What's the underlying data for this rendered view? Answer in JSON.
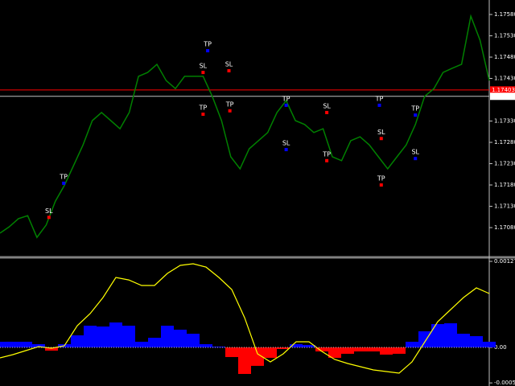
{
  "chart_data": [
    {
      "type": "line",
      "color": "#008000",
      "values": [
        1.17067,
        1.17082,
        1.17101,
        1.17108,
        1.17057,
        1.17086,
        1.17142,
        1.1718,
        1.17227,
        1.17274,
        1.17331,
        1.1735,
        1.17331,
        1.17312,
        1.1735,
        1.17435,
        1.17444,
        1.17463,
        1.17425,
        1.17406,
        1.17435,
        1.17435,
        1.17435,
        1.17388,
        1.17331,
        1.17246,
        1.17218,
        1.17265,
        1.17284,
        1.17303,
        1.1735,
        1.17378,
        1.17331,
        1.17322,
        1.17303,
        1.17312,
        1.17246,
        1.17237,
        1.17284,
        1.17293,
        1.17274,
        1.17246,
        1.17218,
        1.17246,
        1.17274,
        1.17322,
        1.17388,
        1.17406,
        1.17444,
        1.17454,
        1.17463,
        1.17576,
        1.1752,
        1.17425
      ],
      "ylim": [
        1.17014,
        1.17614
      ],
      "yticks": [
        {
          "value": 1.1758,
          "label": "1.17580"
        },
        {
          "value": 1.1753,
          "label": "1.17530"
        },
        {
          "value": 1.1748,
          "label": "1.17480"
        },
        {
          "value": 1.1743,
          "label": "1.17430"
        },
        {
          "value": 1.1733,
          "label": "1.17330"
        },
        {
          "value": 1.1728,
          "label": "1.17280"
        },
        {
          "value": 1.1723,
          "label": "1.17230"
        },
        {
          "value": 1.1718,
          "label": "1.17180"
        },
        {
          "value": 1.1713,
          "label": "1.17130"
        },
        {
          "value": 1.1708,
          "label": "1.17080"
        }
      ],
      "levels": [
        {
          "value": 1.17403,
          "label": "1.17403",
          "color": "#ff0000"
        },
        {
          "value": 1.17388,
          "label": "1.17388",
          "color": "#c0c0c0"
        }
      ],
      "signals": [
        {
          "text": "TP",
          "x": 6.9,
          "y": 1.17184,
          "color": "#0000ff"
        },
        {
          "text": "SL",
          "x": 5.3,
          "y": 1.17104,
          "color": "#ff0000"
        },
        {
          "text": "TP",
          "x": 22.5,
          "y": 1.17495,
          "color": "#0000ff"
        },
        {
          "text": "SL",
          "x": 22,
          "y": 1.17444,
          "color": "#ff0000"
        },
        {
          "text": "TP",
          "x": 22,
          "y": 1.17346,
          "color": "#ff0000"
        },
        {
          "text": "SL",
          "x": 24.8,
          "y": 1.17448,
          "color": "#ff0000"
        },
        {
          "text": "TP",
          "x": 24.9,
          "y": 1.17354,
          "color": "#ff0000"
        },
        {
          "text": "TP",
          "x": 31,
          "y": 1.17367,
          "color": "#0000ff"
        },
        {
          "text": "SL",
          "x": 31,
          "y": 1.17263,
          "color": "#0000ff"
        },
        {
          "text": "SL",
          "x": 35.4,
          "y": 1.1735,
          "color": "#ff0000"
        },
        {
          "text": "TP",
          "x": 35.4,
          "y": 1.17237,
          "color": "#ff0000"
        },
        {
          "text": "TP",
          "x": 41.1,
          "y": 1.17367,
          "color": "#0000ff"
        },
        {
          "text": "SL",
          "x": 41.3,
          "y": 1.17289,
          "color": "#ff0000"
        },
        {
          "text": "TP",
          "x": 41.3,
          "y": 1.1718,
          "color": "#ff0000"
        },
        {
          "text": "TP",
          "x": 45,
          "y": 1.17344,
          "color": "#0000ff"
        },
        {
          "text": "SL",
          "x": 45,
          "y": 1.17242,
          "color": "#0000ff"
        }
      ]
    },
    {
      "type": "oscillator",
      "series": [
        {
          "kind": "area",
          "positive_color": "#0000ff",
          "negative_color": "#ff0000",
          "values": [
            8.4e-05,
            8.4e-05,
            8.4e-05,
            4.8e-05,
            -4.8e-05,
            4.8e-05,
            0.000179,
            0.000322,
            0.00031,
            0.00037,
            0.000322,
            8.4e-05,
            0.000143,
            0.000322,
            0.000263,
            0.000203,
            4.8e-05,
            1.2e-05,
            -0.000143,
            -0.000394,
            -0.000274,
            -0.000155,
            -2.4e-05,
            4.8e-05,
            3.6e-05,
            -6e-05,
            -0.000155,
            -9.5e-05,
            -6e-05,
            -6e-05,
            -0.000107,
            -9.5e-05,
            8.4e-05,
            0.000239,
            0.000346,
            0.000358,
            0.000203,
            0.000167,
            8.4e-05
          ]
        },
        {
          "kind": "line",
          "color": "#ffff00",
          "values": [
            -0.000155,
            -0.000107,
            -4.8e-05,
            1.2e-05,
            -1.2e-05,
            2.4e-05,
            0.000322,
            0.000501,
            0.00074,
            0.001038,
            0.001002,
            0.000919,
            0.000919,
            0.001098,
            0.001217,
            0.001241,
            0.001193,
            0.001038,
            0.000859,
            0.000441,
            -9.5e-05,
            -0.000215,
            -9.5e-05,
            8.4e-05,
            8.4e-05,
            -6e-05,
            -0.000179,
            -0.000239,
            -0.000286,
            -0.000334,
            -0.000358,
            -0.000382,
            -0.000215,
            8.4e-05,
            0.000382,
            0.000561,
            0.00074,
            0.000883,
            0.0008
          ]
        }
      ],
      "ylim": [
        -0.000573,
        0.001313
      ],
      "yticks": [
        0.001277,
        {
          "value": 0,
          "label": "0.00"
        },
        -0.000527
      ],
      "zero_line": true
    }
  ]
}
